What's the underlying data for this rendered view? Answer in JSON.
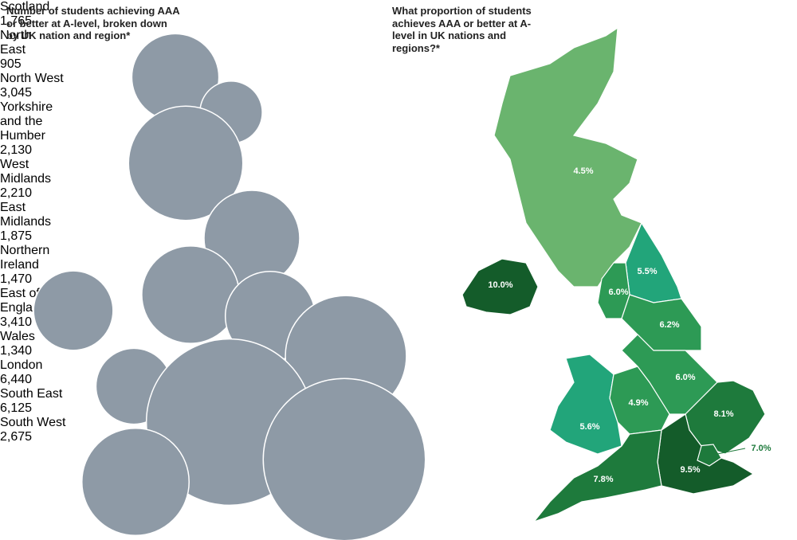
{
  "chart_data": [
    {
      "type": "bubble",
      "title": "Number of students achieving AAA or better at A-level, broken down by UK nation and region*",
      "categories": [
        "Scotland",
        "North East",
        "North West",
        "Yorkshire and the Humber",
        "West Midlands",
        "East Midlands",
        "Northern Ireland",
        "East of England",
        "Wales",
        "London",
        "South East",
        "South West"
      ],
      "values": [
        1765,
        905,
        3045,
        2130,
        2210,
        1875,
        1470,
        3410,
        1340,
        6440,
        6125,
        2675
      ],
      "value_labels": [
        "1,765",
        "905",
        "3,045",
        "2,130",
        "2,210",
        "1,875",
        "1,470",
        "3,410",
        "1,340",
        "6,440",
        "6,125",
        "2,675"
      ],
      "color": "#8e9aa6"
    },
    {
      "type": "map",
      "title": "What proportion of students achieves AAA or better at A-level in UK nations and regions?*",
      "values": [
        4.5,
        10.0,
        5.5,
        6.0,
        6.2,
        5.6,
        4.9,
        6.0,
        8.1,
        7.0,
        9.5,
        7.8
      ],
      "value_labels": [
        "4.5%",
        "10.0%",
        "5.5%",
        "6.0%",
        "6.2%",
        "5.6%",
        "4.9%",
        "6.0%",
        "8.1%",
        "7.0%",
        "9.5%",
        "7.8%"
      ],
      "colors": [
        "#6ab46e",
        "#145c2a",
        "#22a57a",
        "#2d9a55",
        "#2d9a55",
        "#22a57a",
        "#2d9a55",
        "#2d9a55",
        "#1e7a3c",
        "#1e7a3c",
        "#145c2a",
        "#1e7a3c"
      ]
    }
  ]
}
